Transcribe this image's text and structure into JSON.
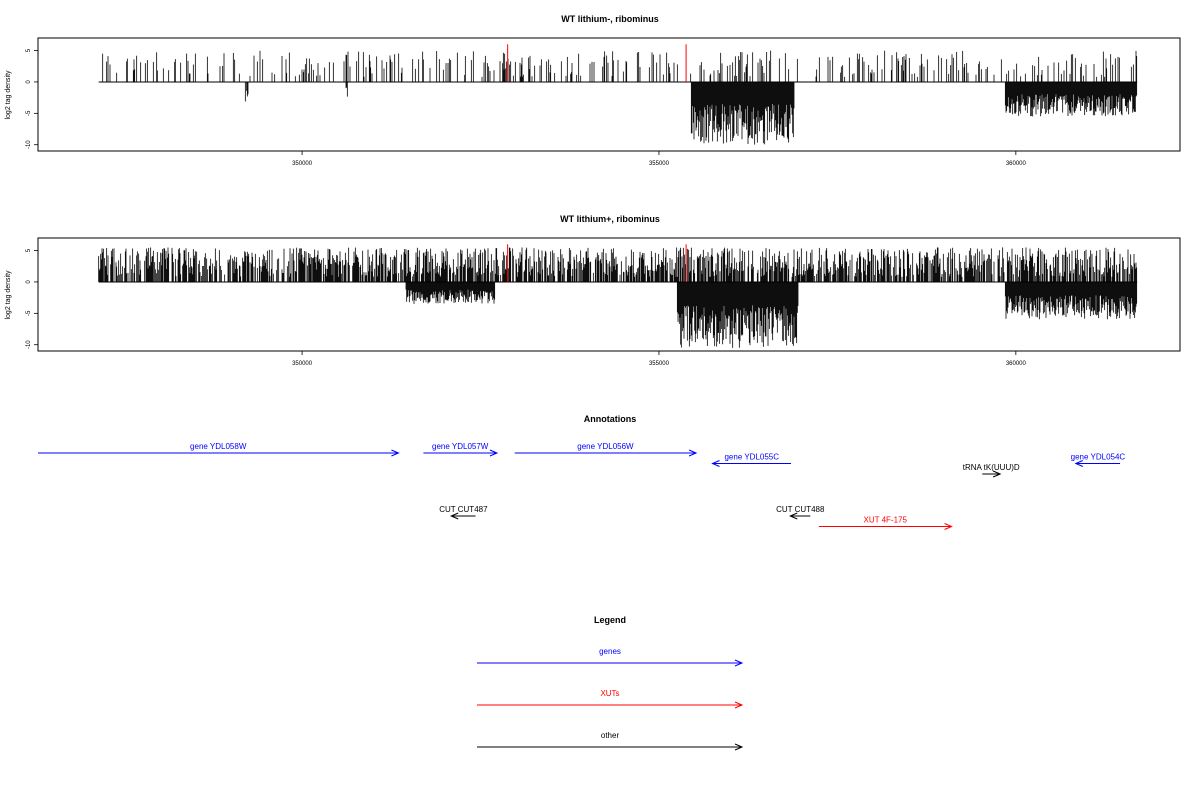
{
  "chart_data": {
    "type": "genome-track",
    "panels": [
      {
        "title": "WT lithium-, ribominus",
        "ylabel": "log2 tag density",
        "ylim": [
          -11,
          7
        ],
        "yticks": [
          5,
          0,
          -5,
          -10
        ],
        "xlim": [
          346300,
          362300
        ],
        "xticks": [
          350000,
          355000,
          360000
        ],
        "xtick_labels": [
          "350000",
          "355000",
          "360000"
        ],
        "data_range": [
          347150,
          361700
        ],
        "positive_density": 0.22,
        "positive_max": 5,
        "negative_regions": [
          {
            "from": 349200,
            "to": 349250,
            "depth": 3.5
          },
          {
            "from": 350600,
            "to": 350650,
            "depth": 2.5
          },
          {
            "from": 355450,
            "to": 356900,
            "depth": 10
          },
          {
            "from": 359850,
            "to": 361700,
            "depth": 5.5
          }
        ],
        "red_markers": [
          {
            "x": 352880,
            "value": 6
          },
          {
            "x": 355380,
            "value": 6
          }
        ]
      },
      {
        "title": "WT lithium+, ribominus",
        "ylabel": "log2 tag density",
        "ylim": [
          -11,
          7
        ],
        "yticks": [
          5,
          0,
          -5,
          -10
        ],
        "xlim": [
          346300,
          362300
        ],
        "xticks": [
          350000,
          355000,
          360000
        ],
        "xtick_labels": [
          "350000",
          "355000",
          "360000"
        ],
        "data_range": [
          347150,
          361700
        ],
        "positive_density": 0.7,
        "positive_max": 5.5,
        "negative_regions": [
          {
            "from": 351450,
            "to": 352700,
            "depth": 3.5
          },
          {
            "from": 355250,
            "to": 356950,
            "depth": 10.5
          },
          {
            "from": 359850,
            "to": 361700,
            "depth": 6
          }
        ],
        "red_markers": [
          {
            "x": 352880,
            "value": 6
          },
          {
            "x": 355380,
            "value": 6
          }
        ]
      }
    ],
    "annotations_title": "Annotations",
    "annotations": [
      {
        "label": "gene YDL058W",
        "from": 346300,
        "to": 351350,
        "row": 0,
        "category": "genes"
      },
      {
        "label": "gene YDL057W",
        "from": 351700,
        "to": 352730,
        "row": 0,
        "category": "genes"
      },
      {
        "label": "gene YDL056W",
        "from": 352980,
        "to": 355520,
        "row": 0,
        "category": "genes"
      },
      {
        "label": "gene YDL055C",
        "from": 356850,
        "to": 355750,
        "row": 1,
        "category": "genes"
      },
      {
        "label": "gene YDL054C",
        "from": 361460,
        "to": 360840,
        "row": 1,
        "category": "genes"
      },
      {
        "label": "tRNA tK(UUU)D",
        "from": 359530,
        "to": 359780,
        "row": 2,
        "category": "other"
      },
      {
        "label": "CUT CUT487",
        "from": 352430,
        "to": 352090,
        "row": 6,
        "category": "other"
      },
      {
        "label": "CUT CUT488",
        "from": 357120,
        "to": 356840,
        "row": 6,
        "category": "other"
      },
      {
        "label": "XUT 4F-175",
        "from": 357240,
        "to": 359100,
        "row": 7,
        "category": "XUTs"
      }
    ],
    "legend_title": "Legend",
    "legend": [
      {
        "label": "genes",
        "category": "genes"
      },
      {
        "label": "XUTs",
        "category": "XUTs"
      },
      {
        "label": "other",
        "category": "other"
      }
    ],
    "colors": {
      "genes": "#0000ff",
      "XUTs": "#ff0000",
      "other": "#000000",
      "density": "#000000",
      "marker": "#ff0000"
    }
  }
}
